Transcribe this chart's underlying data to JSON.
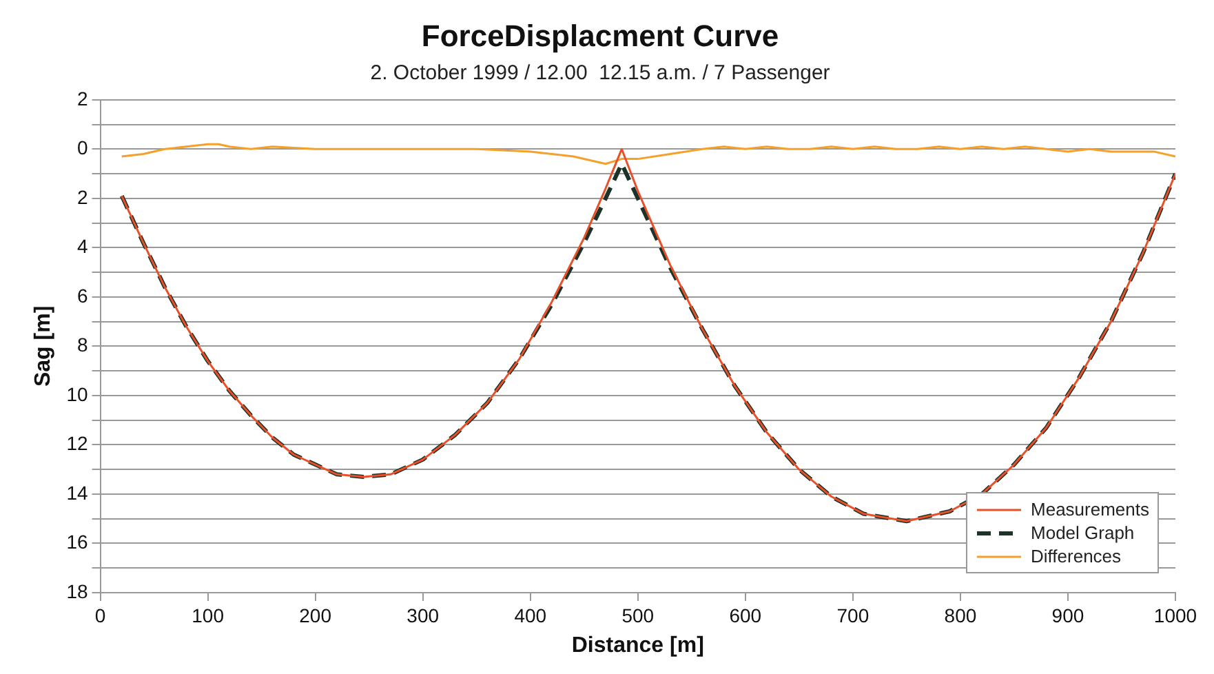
{
  "chart_data": {
    "type": "line",
    "title": "ForceDisplacment Curve",
    "subtitle": "2. October 1999 / 12.00  12.15 a.m. / 7 Passenger",
    "xlabel": "Distance [m]",
    "ylabel": "Sag [m]",
    "xlim": [
      0,
      1000
    ],
    "xticks": [
      0,
      100,
      200,
      300,
      400,
      500,
      600,
      700,
      800,
      900,
      1000
    ],
    "ylim": [
      18,
      -2
    ],
    "yticks": [
      {
        "value": -2,
        "label": "2"
      },
      {
        "value": -1,
        "label": null
      },
      0,
      {
        "value": 1,
        "label": null
      },
      2,
      {
        "value": 3,
        "label": null
      },
      4,
      {
        "value": 5,
        "label": null
      },
      6,
      {
        "value": 7,
        "label": null
      },
      8,
      {
        "value": 9,
        "label": null
      },
      10,
      {
        "value": 11,
        "label": null
      },
      12,
      {
        "value": 13,
        "label": null
      },
      14,
      {
        "value": 15,
        "label": null
      },
      16,
      {
        "value": 17,
        "label": null
      },
      18
    ],
    "grid": "y",
    "legend": "bottom right",
    "marker": "none",
    "series": [
      {
        "name": "Measurements",
        "color": "#e8502a",
        "line_style": "solid",
        "x": [
          20,
          40,
          60,
          80,
          100,
          120,
          140,
          160,
          180,
          200,
          220,
          245,
          270,
          300,
          330,
          360,
          390,
          420,
          450,
          470,
          485,
          500,
          530,
          560,
          590,
          620,
          650,
          680,
          710,
          750,
          790,
          820,
          850,
          880,
          910,
          940,
          970,
          1000
        ],
        "values": [
          1.9,
          3.8,
          5.6,
          7.2,
          8.6,
          9.8,
          10.8,
          11.7,
          12.4,
          12.8,
          13.2,
          13.3,
          13.2,
          12.6,
          11.6,
          10.3,
          8.5,
          6.2,
          3.6,
          1.6,
          0,
          1.7,
          4.7,
          7.3,
          9.6,
          11.5,
          13.0,
          14.1,
          14.8,
          15.1,
          14.7,
          14.0,
          12.8,
          11.3,
          9.3,
          7.0,
          4.2,
          1.0
        ]
      },
      {
        "name": "Model Graph",
        "color": "#1e3328",
        "line_style": "dashed",
        "x": [
          20,
          40,
          60,
          80,
          100,
          120,
          140,
          160,
          180,
          200,
          220,
          245,
          270,
          300,
          330,
          360,
          390,
          420,
          450,
          470,
          485,
          500,
          530,
          560,
          590,
          620,
          650,
          680,
          710,
          750,
          790,
          820,
          850,
          880,
          910,
          940,
          970,
          1000
        ],
        "values": [
          1.9,
          3.8,
          5.6,
          7.2,
          8.6,
          9.8,
          10.8,
          11.7,
          12.4,
          12.8,
          13.2,
          13.3,
          13.2,
          12.6,
          11.6,
          10.3,
          8.5,
          6.3,
          3.8,
          2.0,
          0.6,
          2.0,
          4.8,
          7.3,
          9.6,
          11.5,
          13.0,
          14.1,
          14.8,
          15.1,
          14.7,
          14.0,
          12.8,
          11.3,
          9.3,
          7.0,
          4.2,
          1.0
        ]
      },
      {
        "name": "Differences",
        "color": "#f5a02a",
        "line_style": "solid",
        "x": [
          20,
          40,
          60,
          80,
          100,
          110,
          120,
          140,
          160,
          200,
          250,
          300,
          350,
          400,
          440,
          470,
          485,
          500,
          530,
          560,
          580,
          600,
          620,
          640,
          660,
          680,
          700,
          720,
          740,
          760,
          780,
          800,
          820,
          840,
          860,
          880,
          900,
          920,
          940,
          960,
          980,
          1000
        ],
        "values": [
          0.3,
          0.2,
          0,
          -0.1,
          -0.2,
          -0.2,
          -0.1,
          0,
          -0.1,
          0,
          0,
          0,
          0,
          0.1,
          0.3,
          0.6,
          0.4,
          0.4,
          0.2,
          0,
          -0.1,
          0,
          -0.1,
          0,
          0,
          -0.1,
          0,
          -0.1,
          0,
          0,
          -0.1,
          0,
          -0.1,
          0,
          -0.1,
          0,
          0.1,
          0,
          0.1,
          0.1,
          0.1,
          0.3
        ]
      }
    ]
  }
}
